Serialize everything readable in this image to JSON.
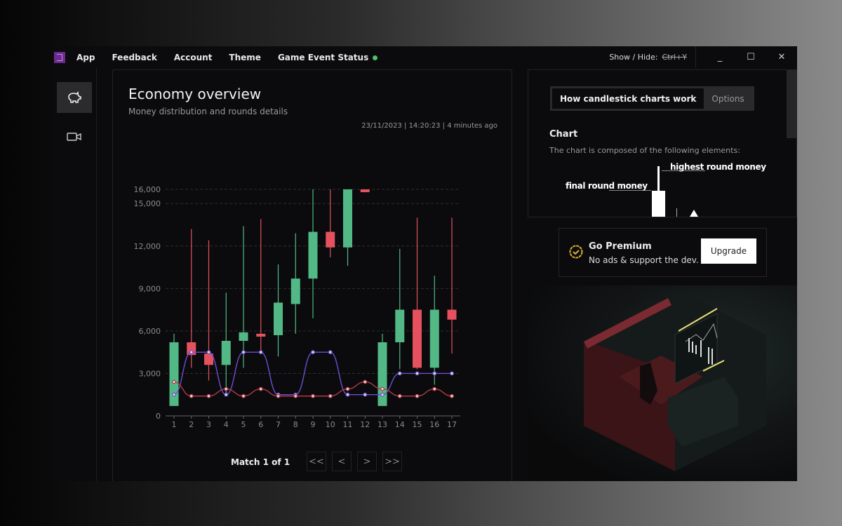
{
  "titlebar": {
    "app": "App",
    "menu": [
      "Feedback",
      "Account",
      "Theme",
      "Game Event Status"
    ],
    "status_color": "#4cc46a",
    "shortcut_label": "Show / Hide:",
    "shortcut_key": "Ctrl+Y",
    "minimize": "_",
    "maximize": "☐",
    "close": "✕"
  },
  "sidebar": {
    "items": [
      {
        "icon": "piggy-bank-icon",
        "glyph": "🐖",
        "active": true
      },
      {
        "icon": "video-camera-icon",
        "glyph": "▭",
        "active": false
      }
    ]
  },
  "main": {
    "title": "Economy overview",
    "subtitle": "Money distribution and rounds details",
    "timestamp": "23/11/2023 | 14:20:23 | 4 minutes ago",
    "pager": {
      "label": "Match 1 of 1",
      "first": "<<",
      "prev": "<",
      "next": ">",
      "last": ">>"
    }
  },
  "chart_data": {
    "type": "candlestick",
    "categories": [
      "1",
      "2",
      "3",
      "4",
      "5",
      "6",
      "7",
      "8",
      "9",
      "10",
      "11",
      "12",
      "13",
      "14",
      "15",
      "16",
      "17"
    ],
    "yticks": [
      0,
      3000,
      6000,
      9000,
      12000,
      15000,
      16000
    ],
    "ytick_labels": [
      "0",
      "3,000",
      "6,000",
      "9,000",
      "12,000",
      "15,000",
      "16,000"
    ],
    "ylim": [
      0,
      16000
    ],
    "grid": true,
    "up_color": "#52b986",
    "down_color": "#e5515f",
    "candles": [
      {
        "open": 700,
        "close": 5200,
        "low": 700,
        "high": 5800
      },
      {
        "open": 5200,
        "close": 4300,
        "low": 3400,
        "high": 13200
      },
      {
        "open": 4400,
        "close": 3600,
        "low": 2500,
        "high": 12400
      },
      {
        "open": 3600,
        "close": 5300,
        "low": 1500,
        "high": 8700
      },
      {
        "open": 5300,
        "close": 5900,
        "low": 3400,
        "high": 13400
      },
      {
        "open": 5800,
        "close": 5600,
        "low": 4500,
        "high": 13900
      },
      {
        "open": 5700,
        "close": 8000,
        "low": 4200,
        "high": 10700
      },
      {
        "open": 7900,
        "close": 9700,
        "low": 5800,
        "high": 12900
      },
      {
        "open": 9700,
        "close": 13000,
        "low": 6900,
        "high": 16000
      },
      {
        "open": 13000,
        "close": 11900,
        "low": 11200,
        "high": 16000
      },
      {
        "open": 11900,
        "close": 16000,
        "low": 10600,
        "high": 16000
      },
      {
        "open": 16000,
        "close": 15800,
        "low": 15800,
        "high": 16000
      },
      {
        "open": 700,
        "close": 5200,
        "low": 700,
        "high": 5800
      },
      {
        "open": 5200,
        "close": 7500,
        "low": 3300,
        "high": 11800
      },
      {
        "open": 7500,
        "close": 3400,
        "low": 3300,
        "high": 14000
      },
      {
        "open": 3400,
        "close": 7500,
        "low": 2200,
        "high": 9900
      },
      {
        "open": 7500,
        "close": 6800,
        "low": 4400,
        "high": 14000
      }
    ],
    "lines": [
      {
        "color": "#6a4fd0",
        "values": [
          1500,
          4500,
          4500,
          1500,
          4500,
          4500,
          1500,
          1500,
          4500,
          4500,
          1500,
          1500,
          1500,
          3000,
          3000,
          3000,
          3000
        ]
      },
      {
        "color": "#b03a45",
        "values": [
          2400,
          1400,
          1400,
          1900,
          1400,
          1900,
          1400,
          1400,
          1400,
          1400,
          1900,
          2400,
          1900,
          1400,
          1400,
          1900,
          1400
        ]
      }
    ]
  },
  "panel": {
    "tabs": [
      "How candlestick charts work",
      "Options"
    ],
    "heading": "Chart",
    "description": "The chart is composed of the following elements:",
    "labels": {
      "high": "highest round money",
      "final": "final round money"
    }
  },
  "premium": {
    "title": "Go Premium",
    "text": "No ads & support the dev.",
    "button": "Upgrade",
    "accent": "#d9b336"
  }
}
